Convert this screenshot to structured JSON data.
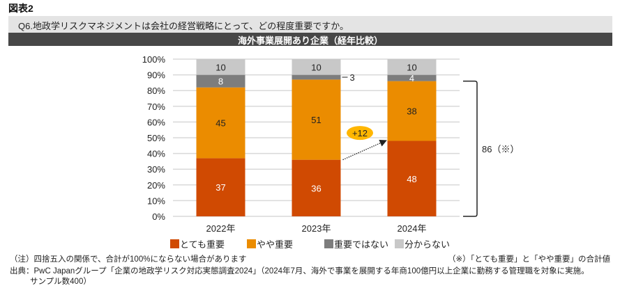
{
  "figure_label": "図表2",
  "question": "Q6.地政学リスクマネジメントは会社の経営戦略にとって、どの程度重要ですか。",
  "section_title": "海外事業展開あり企業（経年比較）",
  "chart_data": {
    "type": "bar",
    "stacked": true,
    "title": "海外事業展開あり企業（経年比較）",
    "xlabel": "",
    "ylabel": "",
    "ylim": [
      0,
      100
    ],
    "y_ticks": [
      "0%",
      "10%",
      "20%",
      "30%",
      "40%",
      "50%",
      "60%",
      "70%",
      "80%",
      "90%",
      "100%"
    ],
    "grid": true,
    "categories": [
      "2022年",
      "2023年",
      "2024年"
    ],
    "series": [
      {
        "name": "とても重要",
        "color": "#D04A02",
        "label_color": "#ffffff",
        "values": [
          37,
          36,
          48
        ]
      },
      {
        "name": "やや重要",
        "color": "#EB8C00",
        "label_color": "#222222",
        "values": [
          45,
          51,
          38
        ]
      },
      {
        "name": "重要ではない",
        "color": "#7D7D7D",
        "label_color": "#ffffff",
        "values": [
          8,
          3,
          4
        ]
      },
      {
        "name": "分からない",
        "color": "#C8C8C8",
        "label_color": "#222222",
        "values": [
          10,
          10,
          10
        ]
      }
    ],
    "legend_position": "bottom",
    "annotations": [
      {
        "type": "arrow",
        "from": "2023年",
        "to": "2024年",
        "series": "とても重要",
        "label": "+12",
        "badge_color": "#FFB600"
      },
      {
        "type": "bracket",
        "category": "2024年",
        "label": "86（※）",
        "value": 86
      },
      {
        "type": "leader",
        "category": "2023年",
        "series": "重要ではない",
        "label": "3"
      }
    ]
  },
  "notes": {
    "rounding": "（注）四捨五入の関係で、合計が100%にならない場合があります",
    "asterisk": "（※）「とても重要」と「やや重要」の合計値",
    "source_line1": "出典：PwC Japanグループ「企業の地政学リスク対応実態調査2024」（2024年7月、海外で事業を展開する年商100億円以上企業に勤務する管理職を対象に実施。",
    "source_line2": "サンプル数400）"
  }
}
